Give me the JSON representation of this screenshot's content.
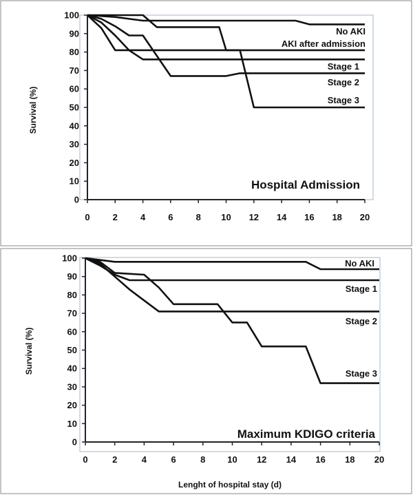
{
  "chart_data": [
    {
      "type": "line",
      "title": "Hospital Admission",
      "ylabel": "Survival  (%)",
      "xlabel": "",
      "xlim": [
        0,
        20
      ],
      "ylim": [
        0,
        100
      ],
      "xticks": [
        0,
        2,
        4,
        6,
        8,
        10,
        12,
        14,
        16,
        18,
        20
      ],
      "yticks": [
        0,
        10,
        20,
        30,
        40,
        50,
        60,
        70,
        80,
        90,
        100
      ],
      "grid": false,
      "series": [
        {
          "name": "No AKI",
          "x": [
            0,
            2,
            4,
            15,
            16,
            20
          ],
          "y": [
            100,
            99,
            97,
            97,
            95,
            95
          ]
        },
        {
          "name": "AKI after admission",
          "x": [
            0,
            4,
            5,
            9.5,
            10,
            20
          ],
          "y": [
            100,
            100,
            93.5,
            93.5,
            81,
            81
          ]
        },
        {
          "name": "Stage 1",
          "x": [
            0,
            1,
            2,
            3,
            4,
            20
          ],
          "y": [
            100,
            96,
            89,
            81,
            76,
            76
          ]
        },
        {
          "name": "Stage 2",
          "x": [
            0,
            1,
            2,
            3,
            4,
            5,
            6,
            10,
            11,
            20
          ],
          "y": [
            100,
            98,
            94,
            89,
            89,
            78,
            67,
            67,
            68.5,
            68.5
          ]
        },
        {
          "name": "Stage 3",
          "x": [
            0,
            1,
            2,
            11,
            12,
            20
          ],
          "y": [
            100,
            93,
            81,
            81,
            50,
            50
          ]
        }
      ]
    },
    {
      "type": "line",
      "title": "Maximum KDIGO criteria",
      "ylabel": "Survival  (%)",
      "xlabel": "Lenght of hospital stay (d)",
      "xlim": [
        0,
        20
      ],
      "ylim": [
        0,
        100
      ],
      "xticks": [
        0,
        2,
        4,
        6,
        8,
        10,
        12,
        14,
        16,
        18,
        20
      ],
      "yticks": [
        0,
        10,
        20,
        30,
        40,
        50,
        60,
        70,
        80,
        90,
        100
      ],
      "grid": false,
      "series": [
        {
          "name": "No AKI",
          "x": [
            0,
            2,
            15,
            16,
            20
          ],
          "y": [
            100,
            98,
            98,
            94,
            94
          ]
        },
        {
          "name": "Stage 1",
          "x": [
            0,
            1,
            2,
            3,
            20
          ],
          "y": [
            100,
            96,
            91,
            88,
            88
          ]
        },
        {
          "name": "Stage 2",
          "x": [
            0,
            1,
            2,
            3,
            4,
            5,
            20
          ],
          "y": [
            100,
            97,
            90,
            83,
            77,
            71,
            71
          ]
        },
        {
          "name": "Stage 3",
          "x": [
            0,
            1,
            2,
            4,
            5,
            6,
            9,
            10,
            11,
            12,
            15,
            16,
            20
          ],
          "y": [
            100,
            98,
            92,
            91,
            84,
            75,
            75,
            65,
            65,
            52,
            52,
            32,
            32
          ]
        }
      ]
    }
  ]
}
